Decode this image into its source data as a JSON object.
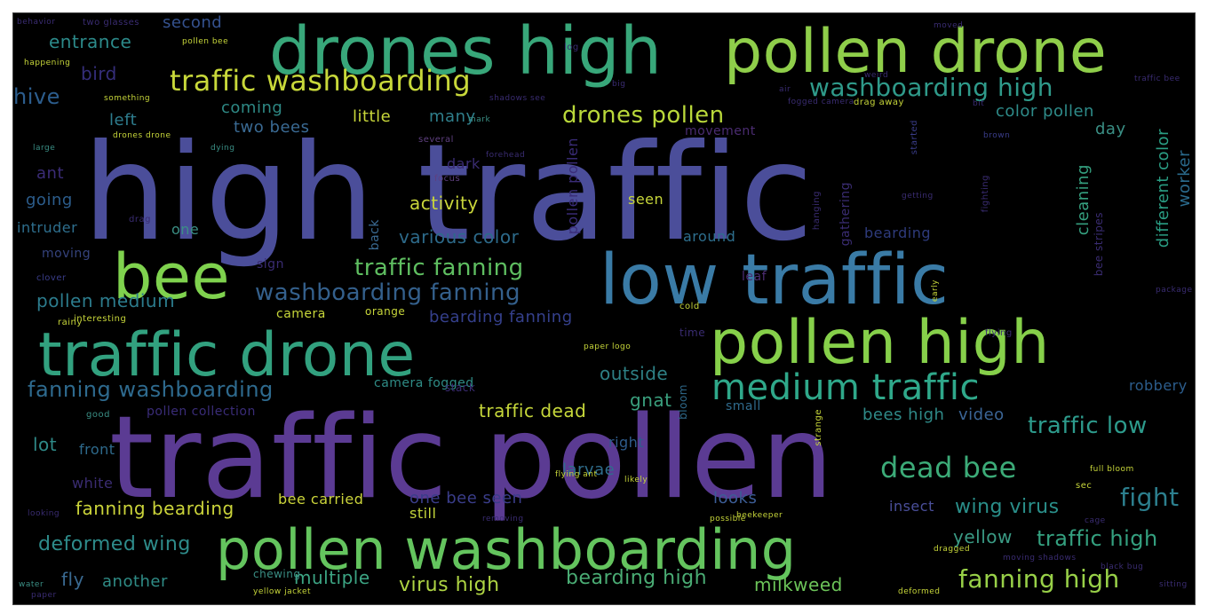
{
  "colors": {
    "background": "#000000",
    "frame": "#444444"
  },
  "words": [
    {
      "text": "high traffic",
      "color": "#4b4e9a"
    },
    {
      "text": "traffic pollen",
      "color": "#5b3b93"
    },
    {
      "text": "drones high",
      "color": "#38a77a"
    },
    {
      "text": "pollen drone",
      "color": "#8fce4a"
    },
    {
      "text": "low traffic",
      "color": "#3a7ba6"
    },
    {
      "text": "bee",
      "color": "#7fd24e"
    },
    {
      "text": "traffic drone",
      "color": "#32a17f"
    },
    {
      "text": "pollen high",
      "color": "#86d04a"
    },
    {
      "text": "pollen washboarding",
      "color": "#64c45e"
    },
    {
      "text": "traffic washboarding",
      "color": "#c8d83a"
    },
    {
      "text": "washboarding high",
      "color": "#2f9a8a"
    },
    {
      "text": "drones pollen",
      "color": "#b9d83a"
    },
    {
      "text": "medium traffic",
      "color": "#2fa88a"
    },
    {
      "text": "dead bee",
      "color": "#3cab78"
    },
    {
      "text": "traffic low",
      "color": "#2d9b8c"
    },
    {
      "text": "fight",
      "color": "#2c7f8e"
    },
    {
      "text": "traffic fanning",
      "color": "#5fbf61"
    },
    {
      "text": "washboarding fanning",
      "color": "#34608c"
    },
    {
      "text": "fanning washboarding",
      "color": "#2e6a8e"
    },
    {
      "text": "pollen medium",
      "color": "#2c7c8d"
    },
    {
      "text": "deformed wing",
      "color": "#2e8c8b"
    },
    {
      "text": "fanning bearding",
      "color": "#cbd43a"
    },
    {
      "text": "fanning high",
      "color": "#98d048"
    },
    {
      "text": "wing virus",
      "color": "#2a8f8a"
    },
    {
      "text": "traffic high",
      "color": "#34a07f"
    },
    {
      "text": "yellow",
      "color": "#3a9a84"
    },
    {
      "text": "bearding high",
      "color": "#4aac74"
    },
    {
      "text": "virus high",
      "color": "#aed443"
    },
    {
      "text": "milkweed",
      "color": "#6cc459"
    },
    {
      "text": "multiple",
      "color": "#3ca483"
    },
    {
      "text": "fly",
      "color": "#3a6a92"
    },
    {
      "text": "another",
      "color": "#2f8c86"
    },
    {
      "text": "traffic dead",
      "color": "#c6d73a"
    },
    {
      "text": "activity",
      "color": "#c9d63b"
    },
    {
      "text": "various color",
      "color": "#2d6a8a"
    },
    {
      "text": "bearding fanning",
      "color": "#35408c"
    },
    {
      "text": "outside",
      "color": "#2e8085"
    },
    {
      "text": "gnat",
      "color": "#3aa07e"
    },
    {
      "text": "video",
      "color": "#3b6596"
    },
    {
      "text": "bees high",
      "color": "#2f8a88"
    },
    {
      "text": "one bee seen",
      "color": "#3a3d8a"
    },
    {
      "text": "bee carried",
      "color": "#cbd43a"
    },
    {
      "text": "larvae",
      "color": "#2f6d8c"
    },
    {
      "text": "looks",
      "color": "#3c5d96"
    },
    {
      "text": "insect",
      "color": "#4a4f9a"
    },
    {
      "text": "still",
      "color": "#c3d43b"
    },
    {
      "text": "entrance",
      "color": "#2c8a8a"
    },
    {
      "text": "second",
      "color": "#35528f"
    },
    {
      "text": "hive",
      "color": "#2c5d8d"
    },
    {
      "text": "bird",
      "color": "#352e7a"
    },
    {
      "text": "left",
      "color": "#2e7d8e"
    },
    {
      "text": "coming",
      "color": "#2e8985"
    },
    {
      "text": "two bees",
      "color": "#3a6a93"
    },
    {
      "text": "little",
      "color": "#c7d63a"
    },
    {
      "text": "many",
      "color": "#2f7f8c"
    },
    {
      "text": "color pollen",
      "color": "#2e8b89"
    },
    {
      "text": "day",
      "color": "#3a8f85"
    },
    {
      "text": "different color",
      "color": "#2a9d83"
    },
    {
      "text": "worker",
      "color": "#2a6a8c"
    },
    {
      "text": "cleaning",
      "color": "#35a07f"
    },
    {
      "text": "ant",
      "color": "#3b2c77"
    },
    {
      "text": "going",
      "color": "#2c5d8c"
    },
    {
      "text": "intruder",
      "color": "#2e6f8e"
    },
    {
      "text": "one",
      "color": "#3b8f85"
    },
    {
      "text": "moving",
      "color": "#35437d"
    },
    {
      "text": "around",
      "color": "#2e6f8e"
    },
    {
      "text": "bearding",
      "color": "#2e3b7c"
    },
    {
      "text": "pollen pollen",
      "color": "#3a2c78"
    },
    {
      "text": "seen",
      "color": "#c7d63a"
    },
    {
      "text": "dark",
      "color": "#3a2c72"
    },
    {
      "text": "front",
      "color": "#2e6a8c"
    },
    {
      "text": "lot",
      "color": "#2f8a88"
    },
    {
      "text": "white",
      "color": "#3a2c72"
    },
    {
      "text": "pollen collection",
      "color": "#3a2c78"
    },
    {
      "text": "camera fogged",
      "color": "#2f8c86"
    },
    {
      "text": "traffic low",
      "color": "#2d9b8c"
    },
    {
      "text": "robbery",
      "color": "#2c5d8d"
    },
    {
      "text": "small",
      "color": "#2f6a8c"
    },
    {
      "text": "right",
      "color": "#2f5c8c"
    },
    {
      "text": "movement",
      "color": "#4b2c72"
    },
    {
      "text": "leaf",
      "color": "#4b2c72"
    },
    {
      "text": "sign",
      "color": "#3a2c72"
    },
    {
      "text": "camera",
      "color": "#c7d63a"
    },
    {
      "text": "orange",
      "color": "#c7d63a"
    },
    {
      "text": "gathering",
      "color": "#3a2c72"
    },
    {
      "text": "bee stripes",
      "color": "#3a2c72"
    },
    {
      "text": "drag",
      "color": "#3a2c72"
    },
    {
      "text": "back",
      "color": "#3a6a92"
    },
    {
      "text": "focus",
      "color": "#5f4080"
    },
    {
      "text": "several",
      "color": "#5f4080"
    },
    {
      "text": "cleaning",
      "color": "#35a07f"
    },
    {
      "text": "good",
      "color": "#3a8f85"
    },
    {
      "text": "clover",
      "color": "#3a3d8a"
    },
    {
      "text": "rainy",
      "color": "#c7d63a"
    },
    {
      "text": "interesting",
      "color": "#c7d63a"
    },
    {
      "text": "happening",
      "color": "#c7d63a"
    },
    {
      "text": "pollen bee",
      "color": "#c7d63a"
    },
    {
      "text": "log",
      "color": "#3a2c72"
    },
    {
      "text": "moved",
      "color": "#3a2c72"
    },
    {
      "text": "something",
      "color": "#c7d63a"
    },
    {
      "text": "large",
      "color": "#3a8f85"
    },
    {
      "text": "drones drone",
      "color": "#c7d63a"
    },
    {
      "text": "dying",
      "color": "#3a8f85"
    },
    {
      "text": "bit",
      "color": "#3a2c72"
    },
    {
      "text": "brown",
      "color": "#3a3d8a"
    },
    {
      "text": "getting",
      "color": "#3a2c72"
    },
    {
      "text": "fighting",
      "color": "#3a2c72"
    },
    {
      "text": "hanging",
      "color": "#3a2c72"
    },
    {
      "text": "started",
      "color": "#3a3d8a"
    },
    {
      "text": "drag away",
      "color": "#c7d63a"
    },
    {
      "text": "weird",
      "color": "#3a2c72"
    },
    {
      "text": "big",
      "color": "#3a2c72"
    },
    {
      "text": "air",
      "color": "#3a2c72"
    },
    {
      "text": "traffic bee",
      "color": "#3a2c72"
    },
    {
      "text": "forehead",
      "color": "#3a2c72"
    },
    {
      "text": "package",
      "color": "#3a2c72"
    },
    {
      "text": "early",
      "color": "#c7d63a"
    },
    {
      "text": "flying",
      "color": "#3a2c72"
    },
    {
      "text": "cold",
      "color": "#c7d63a"
    },
    {
      "text": "time",
      "color": "#3a2c72"
    },
    {
      "text": "bloom",
      "color": "#2f6a8c"
    },
    {
      "text": "strange",
      "color": "#c7d63a"
    },
    {
      "text": "full bloom",
      "color": "#c7d63a"
    },
    {
      "text": "sec",
      "color": "#c7d63a"
    },
    {
      "text": "flying ant",
      "color": "#c7d63a"
    },
    {
      "text": "likely",
      "color": "#c7d63a"
    },
    {
      "text": "beekeeper",
      "color": "#c7d63a"
    },
    {
      "text": "possible",
      "color": "#c7d63a"
    },
    {
      "text": "removing",
      "color": "#3a2c72"
    },
    {
      "text": "chewing",
      "color": "#3a8f85"
    },
    {
      "text": "dragged",
      "color": "#c7d63a"
    },
    {
      "text": "moving shadows",
      "color": "#3a2c72"
    },
    {
      "text": "black bug",
      "color": "#3a2c72"
    },
    {
      "text": "sitting",
      "color": "#3a2c72"
    },
    {
      "text": "yellow jacket",
      "color": "#c7d63a"
    },
    {
      "text": "deformed",
      "color": "#c7d63a"
    },
    {
      "text": "paper",
      "color": "#3a2c72"
    },
    {
      "text": "water",
      "color": "#3a8f85"
    },
    {
      "text": "looking",
      "color": "#3a2c72"
    },
    {
      "text": "cage",
      "color": "#3a2c72"
    },
    {
      "text": "cold",
      "color": "#c7d63a"
    },
    {
      "text": "paper logo",
      "color": "#c7d63a"
    },
    {
      "text": "behavior",
      "color": "#3a2c72"
    },
    {
      "text": "two glasses",
      "color": "#3a2c72"
    },
    {
      "text": "mark",
      "color": "#3a8f85"
    },
    {
      "text": "shadows see",
      "color": "#3a2c72"
    },
    {
      "text": "fogged camera",
      "color": "#3a2c72"
    },
    {
      "text": "stack",
      "color": "#3a2c72"
    }
  ]
}
